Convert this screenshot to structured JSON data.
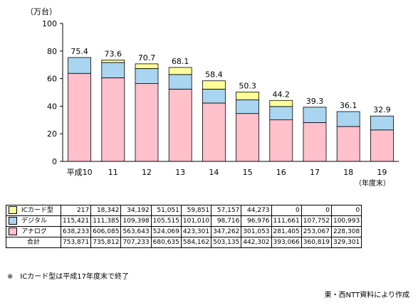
{
  "chart_data": {
    "type": "bar",
    "stacked": true,
    "ylabel": "（万台）",
    "ylim": [
      0,
      100
    ],
    "yticks": [
      0,
      20,
      40,
      60,
      80,
      100
    ],
    "categories": [
      "平成10",
      "11",
      "12",
      "13",
      "14",
      "15",
      "16",
      "17",
      "18",
      "19"
    ],
    "category_sublabel": "（年度末）",
    "totals": [
      "75.4",
      "73.6",
      "70.7",
      "68.1",
      "58.4",
      "50.3",
      "44.2",
      "39.3",
      "36.1",
      "32.9"
    ],
    "series": [
      {
        "name": "アナログ",
        "color": "#ffc0cb",
        "values": [
          63.8,
          60.6,
          56.4,
          52.4,
          42.3,
          34.7,
          30.1,
          28.1,
          25.3,
          22.8
        ]
      },
      {
        "name": "デジタル",
        "color": "#a9d5f0",
        "values": [
          11.5,
          11.1,
          10.9,
          10.6,
          10.1,
          9.9,
          9.7,
          11.2,
          10.8,
          10.1
        ]
      },
      {
        "name": "ICカード型",
        "color": "#ffff99",
        "values": [
          0.0,
          1.8,
          3.4,
          5.1,
          6.0,
          5.7,
          4.4,
          0,
          0,
          0
        ]
      }
    ],
    "grid": false,
    "legend": "table-left"
  },
  "table": {
    "rows": [
      {
        "label": "ICカード型",
        "color": "#ffff99",
        "values": [
          "217",
          "18,342",
          "34,192",
          "51,051",
          "59,851",
          "57,157",
          "44,273",
          "0",
          "0",
          "0"
        ]
      },
      {
        "label": "デジタル",
        "color": "#a9d5f0",
        "values": [
          "115,421",
          "111,385",
          "109,398",
          "105,515",
          "101,010",
          "98,716",
          "96,976",
          "111,661",
          "107,752",
          "100,993"
        ]
      },
      {
        "label": "アナログ",
        "color": "#ffc0cb",
        "values": [
          "638,233",
          "606,085",
          "563,643",
          "524,069",
          "423,301",
          "347,262",
          "301,053",
          "281,405",
          "253,067",
          "228,308"
        ]
      }
    ],
    "total_label": "合計",
    "totals": [
      "753,871",
      "735,812",
      "707,233",
      "680,635",
      "584,162",
      "503,135",
      "442,302",
      "393,066",
      "360,819",
      "329,301"
    ]
  },
  "note": "※　ICカード型は平成17年度末で終了",
  "source": "東・西NTT資料により作成"
}
